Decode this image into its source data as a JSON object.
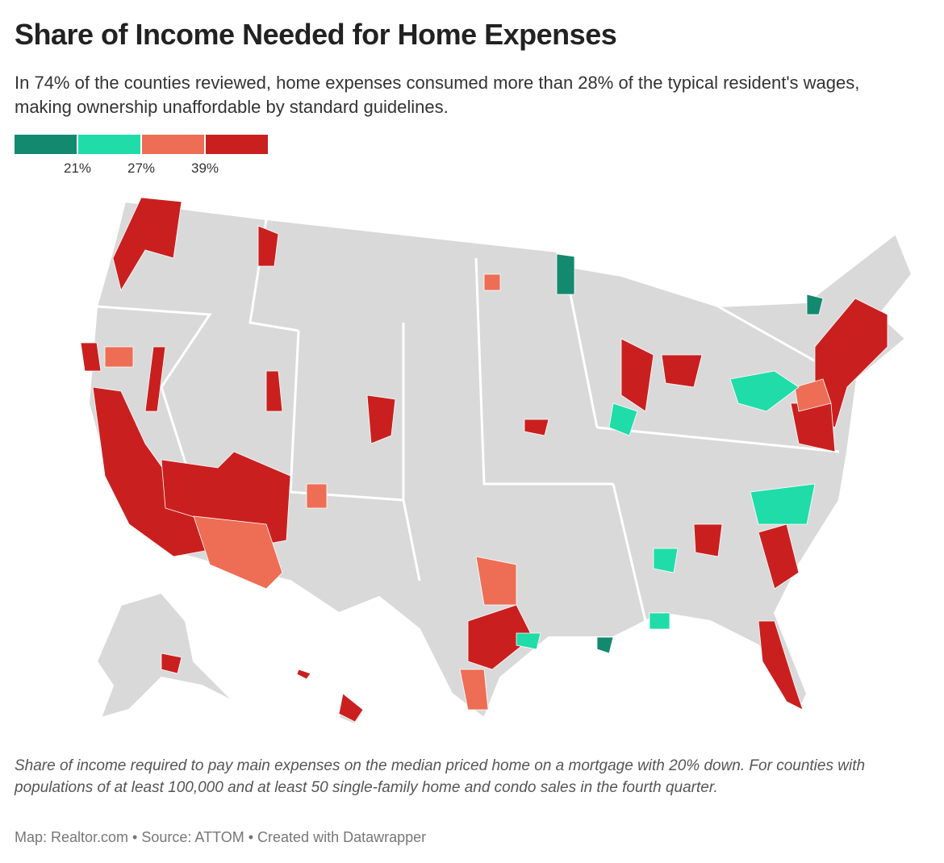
{
  "header": {
    "title": "Share of Income Needed for Home Expenses",
    "subtitle": "In 74% of the counties reviewed, home expenses consumed more than 28% of the typical resident's wages, making ownership unaffordable by standard guidelines."
  },
  "legend": {
    "colors": [
      "#13896f",
      "#1fdca8",
      "#ee6d55",
      "#c9201f"
    ],
    "breaks": [
      {
        "value": 21,
        "label": "21%"
      },
      {
        "value": 27,
        "label": "27%"
      },
      {
        "value": 39,
        "label": "39%"
      }
    ]
  },
  "notes": "Share of income required to pay main expenses on the median priced home on a mortgage with 20% down. For counties with populations of at least 100,000 and at least 50 single-family home and condo sales in the fourth quarter.",
  "credit": "Map: Realtor.com • Source: ATTOM • Created with Datawrapper"
}
